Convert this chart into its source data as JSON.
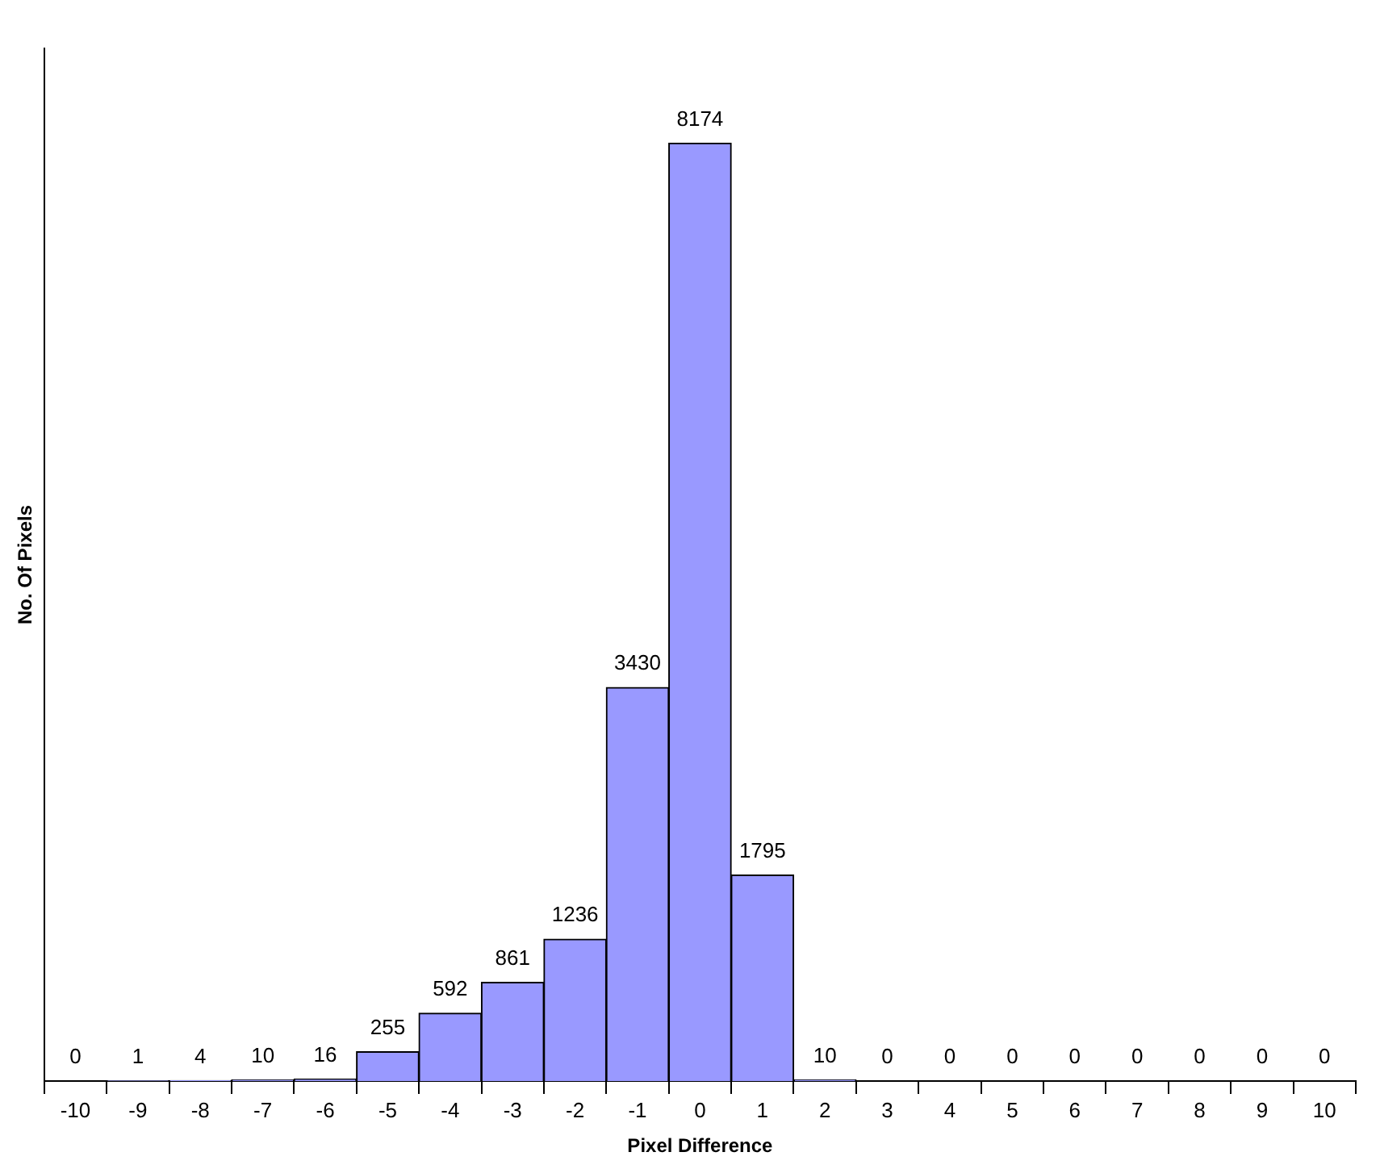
{
  "chart_data": {
    "type": "bar",
    "xlabel": "Pixel Difference",
    "ylabel": "No. Of Pixels",
    "categories": [
      "-10",
      "-9",
      "-8",
      "-7",
      "-6",
      "-5",
      "-4",
      "-3",
      "-2",
      "-1",
      "0",
      "1",
      "2",
      "3",
      "4",
      "5",
      "6",
      "7",
      "8",
      "9",
      "10"
    ],
    "values": [
      0,
      1,
      4,
      10,
      16,
      255,
      592,
      861,
      1236,
      3430,
      8174,
      1795,
      10,
      0,
      0,
      0,
      0,
      0,
      0,
      0,
      0
    ],
    "color": "#9999ff",
    "data_labels": true,
    "grid": false,
    "legend": false,
    "tick_labels": "x"
  }
}
